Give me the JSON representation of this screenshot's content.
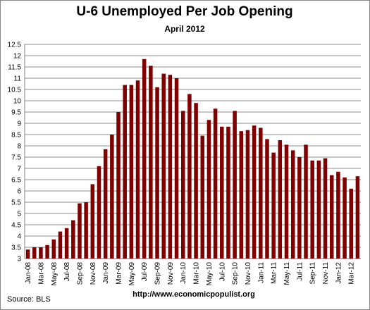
{
  "chart_data": {
    "type": "bar",
    "title": "U-6 Unemployed Per Job Opening",
    "subtitle": "April 2012",
    "source": "Source:  BLS",
    "url": "http://www.economicpopulist.org",
    "categories": [
      "Jan-08",
      null,
      "Mar-08",
      null,
      "May-08",
      null,
      "Jul-08",
      null,
      "Sep-08",
      null,
      "Nov-08",
      null,
      "Jan-09",
      null,
      "Mar-09",
      null,
      "May-09",
      null,
      "Jul-09",
      null,
      "Sep-09",
      null,
      "Nov-09",
      null,
      "Jan-10",
      null,
      "Mar-10",
      null,
      "May-10",
      null,
      "Jul-10",
      null,
      "Sep-10",
      null,
      "Nov-10",
      null,
      "Jan-11",
      null,
      "Mar-11",
      null,
      "May-11",
      null,
      "Jul-11",
      null,
      "Sep-11",
      null,
      "Nov-11",
      null,
      "Jan-12",
      null,
      "Mar-12",
      null
    ],
    "values": [
      3.4,
      3.5,
      3.5,
      3.6,
      3.85,
      4.2,
      4.35,
      4.7,
      5.45,
      5.5,
      6.3,
      7.1,
      7.85,
      8.5,
      9.5,
      10.7,
      10.7,
      10.9,
      11.85,
      11.55,
      10.6,
      11.2,
      11.15,
      11.0,
      9.55,
      10.3,
      9.9,
      8.45,
      9.15,
      9.65,
      8.85,
      8.85,
      9.55,
      8.65,
      8.7,
      8.9,
      8.8,
      8.3,
      7.7,
      8.25,
      8.05,
      7.8,
      7.5,
      8.05,
      7.35,
      7.35,
      7.45,
      6.7,
      6.85,
      6.6,
      6.1,
      6.65
    ],
    "color": "#800000",
    "ylim": [
      3,
      12.5
    ],
    "yticks": [
      3,
      3.5,
      4,
      4.5,
      5,
      5.5,
      6,
      6.5,
      7,
      7.5,
      8,
      8.5,
      9,
      9.5,
      10,
      10.5,
      11,
      11.5,
      12,
      12.5
    ],
    "grid": true
  }
}
